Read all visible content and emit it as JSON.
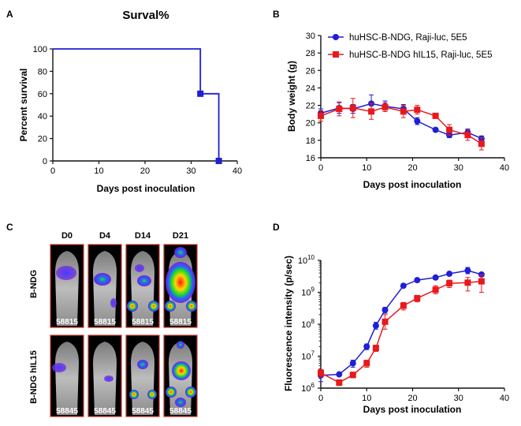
{
  "panels": [
    "A",
    "B",
    "C",
    "D"
  ],
  "colors": {
    "blue": "#1f1fd6",
    "red": "#e8191c",
    "axis": "#111111"
  },
  "chart_data": [
    {
      "panel": "A",
      "type": "line",
      "step": true,
      "title": "Surval%",
      "xlabel": "Days post inoculation",
      "ylabel": "Percent survival",
      "xlim": [
        0,
        40
      ],
      "ylim": [
        0,
        100
      ],
      "xticks": [
        0,
        10,
        20,
        30,
        40
      ],
      "yticks": [
        0,
        20,
        40,
        60,
        80,
        100
      ],
      "series": [
        {
          "color": "#1f1fd6",
          "x": [
            0,
            32,
            32,
            36,
            36
          ],
          "y": [
            100,
            100,
            60,
            60,
            0
          ],
          "markers": [
            {
              "x": 32,
              "y": 60
            },
            {
              "x": 36,
              "y": 0
            }
          ]
        }
      ]
    },
    {
      "panel": "B",
      "type": "line",
      "xlabel": "Days post inoculation",
      "ylabel": "Body weight (g)",
      "xlim": [
        0,
        40
      ],
      "ylim": [
        16,
        30
      ],
      "xticks": [
        0,
        10,
        20,
        30,
        40
      ],
      "yticks": [
        16,
        18,
        20,
        22,
        24,
        26,
        28,
        30
      ],
      "legend": "top-right",
      "series": [
        {
          "name": "huHSC-B-NDG, Raji-luc, 5E5",
          "marker": "circle",
          "color": "#1f1fd6",
          "x": [
            0,
            4,
            7,
            11,
            14,
            18,
            21,
            25,
            28,
            32,
            35
          ],
          "y": [
            21.1,
            21.7,
            21.6,
            22.2,
            21.9,
            21.6,
            20.2,
            19.2,
            18.6,
            18.9,
            18.2
          ],
          "err": [
            0.5,
            0.6,
            0.5,
            1.0,
            0.6,
            0.5,
            0.4,
            0.2,
            0.3,
            0.4,
            0.3
          ]
        },
        {
          "name": "huHSC-B-NDG hIL15, Raji-luc, 5E5",
          "marker": "square",
          "color": "#e8191c",
          "x": [
            0,
            4,
            7,
            11,
            14,
            18,
            21,
            25,
            28,
            32,
            35
          ],
          "y": [
            20.8,
            21.6,
            21.7,
            21.3,
            21.8,
            21.3,
            21.5,
            20.8,
            19.2,
            18.6,
            17.6
          ],
          "err": [
            0.6,
            0.8,
            1.1,
            0.9,
            0.5,
            0.7,
            0.5,
            0.3,
            0.6,
            0.6,
            0.7
          ]
        }
      ]
    },
    {
      "panel": "D",
      "type": "line",
      "log_y": true,
      "xlabel": "Days post inoculation",
      "ylabel": "Fluorescence intensity (p/sec)",
      "xlim": [
        0,
        40
      ],
      "ylim": [
        1000000,
        10000000000
      ],
      "xticks": [
        0,
        10,
        20,
        30,
        40
      ],
      "yticks_exp": [
        6,
        7,
        8,
        9,
        10
      ],
      "series": [
        {
          "marker": "circle",
          "color": "#1f1fd6",
          "x": [
            0,
            4,
            7,
            10,
            12,
            14,
            18,
            21,
            25,
            28,
            32,
            35
          ],
          "y": [
            2500000,
            2700000,
            6000000,
            20000000,
            90000000,
            280000000,
            1600000000,
            2400000000,
            2900000000,
            3800000000,
            4800000000,
            3600000000
          ],
          "err_up": [
            1200000,
            300000,
            1500000,
            4000000,
            25000000,
            60000000,
            150000000,
            300000000,
            400000000,
            500000000,
            1200000000,
            500000000
          ],
          "err_down": [
            900000,
            300000,
            1500000,
            4000000,
            20000000,
            60000000,
            150000000,
            300000000,
            400000000,
            500000000,
            1000000000,
            500000000
          ]
        },
        {
          "marker": "square",
          "color": "#e8191c",
          "x": [
            0,
            4,
            7,
            10,
            12,
            14,
            18,
            21,
            25,
            28,
            32,
            35
          ],
          "y": [
            3000000,
            1500000,
            2600000,
            6000000,
            18000000,
            120000000,
            380000000,
            650000000,
            1200000000,
            1900000000,
            2000000000,
            2200000000
          ],
          "err_up": [
            800000,
            300000,
            500000,
            1500000,
            4000000,
            80000000,
            100000000,
            150000000,
            400000000,
            500000000,
            900000000,
            1300000000
          ],
          "err_down": [
            800000,
            300000,
            500000,
            1500000,
            4000000,
            50000000,
            100000000,
            150000000,
            300000000,
            500000000,
            900000000,
            1200000000
          ]
        }
      ]
    }
  ],
  "imaging": {
    "panel": "C",
    "timepoints": [
      "D0",
      "D4",
      "D14",
      "D21"
    ],
    "groups": [
      {
        "label": "B-NDG",
        "mouse_id": "58815"
      },
      {
        "label": "B-NDG hIL15",
        "mouse_id": "58845"
      }
    ]
  }
}
